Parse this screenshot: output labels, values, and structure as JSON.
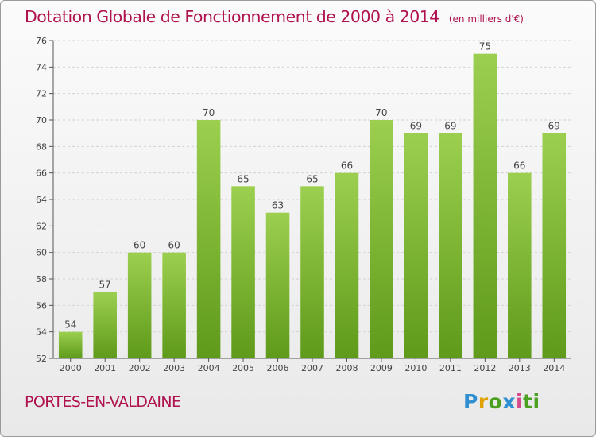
{
  "header": {
    "title": "Dotation Globale de Fonctionnement de 2000 à 2014",
    "unit": "(en milliers d'€)"
  },
  "footer": {
    "commune": "PORTES-EN-VALDAINE",
    "logo_letters": [
      "P",
      "r",
      "o",
      "x",
      "i",
      "t",
      "i"
    ]
  },
  "chart_data": {
    "type": "bar",
    "categories": [
      "2000",
      "2001",
      "2002",
      "2003",
      "2004",
      "2005",
      "2006",
      "2007",
      "2008",
      "2009",
      "2010",
      "2011",
      "2012",
      "2013",
      "2014"
    ],
    "values": [
      54,
      57,
      60,
      60,
      70,
      65,
      63,
      65,
      66,
      70,
      69,
      69,
      75,
      66,
      69
    ],
    "data_labels": [
      "54",
      "57",
      "60",
      "60",
      "70",
      "65",
      "63",
      "65",
      "66",
      "70",
      "69",
      "69",
      "75",
      "66",
      "69"
    ],
    "ylim": [
      52,
      76
    ],
    "yticks": [
      "52",
      "54",
      "56",
      "58",
      "60",
      "62",
      "64",
      "66",
      "68",
      "70",
      "72",
      "74",
      "76"
    ],
    "grid": true,
    "colors": {
      "bar_top": "#9ccf4f",
      "bar_bottom": "#5f9a1a",
      "grid": "#d2d2d2",
      "axis": "#555555",
      "text": "#444444"
    }
  }
}
